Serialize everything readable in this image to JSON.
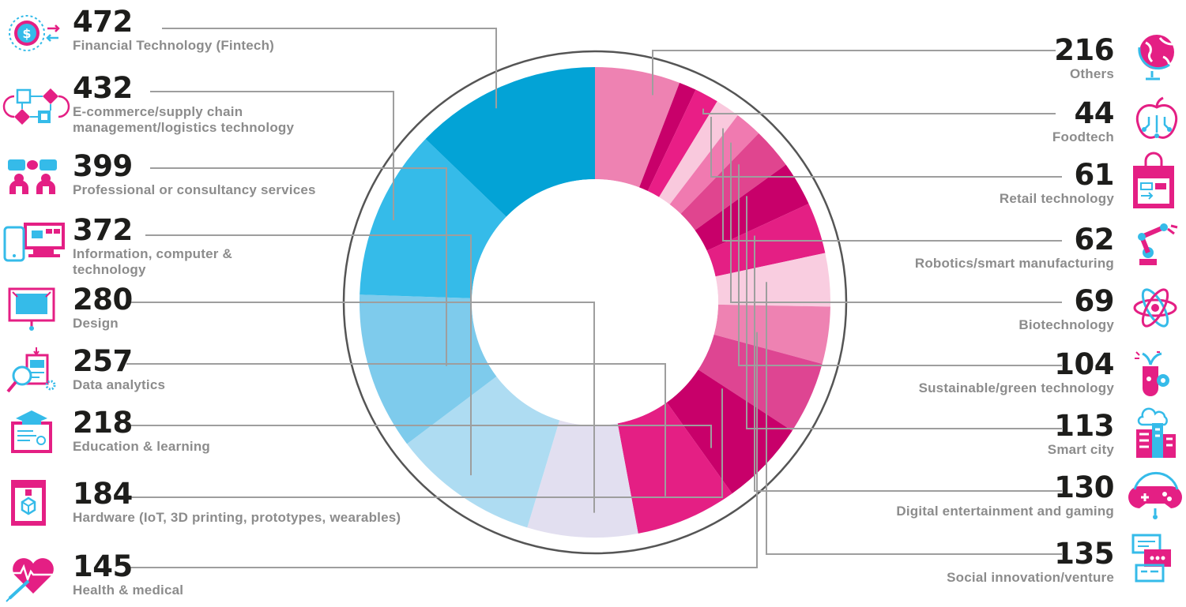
{
  "chart_data": {
    "type": "pie",
    "donut": true,
    "slices": [
      {
        "label": "Others",
        "value": 216,
        "color": "#ee82b2",
        "icon": "globe-icon"
      },
      {
        "label": "Foodtech",
        "value": 44,
        "color": "#c8006a",
        "icon": "apple-circuit-icon"
      },
      {
        "label": "Retail technology",
        "value": 61,
        "color": "#e91e86",
        "icon": "shopping-bag-icon"
      },
      {
        "label": "Robotics/smart manufacturing",
        "value": 62,
        "color": "#f9c9dd",
        "icon": "robot-arm-icon"
      },
      {
        "label": "Biotechnology",
        "value": 69,
        "color": "#f07ab0",
        "icon": "atom-icon"
      },
      {
        "label": "Sustainable/green technology",
        "value": 104,
        "color": "#e0458f",
        "icon": "plant-flask-icon"
      },
      {
        "label": "Smart city",
        "value": 113,
        "color": "#c8006a",
        "icon": "smart-building-icon"
      },
      {
        "label": "Digital entertainment and gaming",
        "value": 130,
        "color": "#e41f84",
        "icon": "game-controller-icon"
      },
      {
        "label": "Social innovation/venture",
        "value": 135,
        "color": "#f9cde0",
        "icon": "chat-bubbles-icon"
      },
      {
        "label": "Health & medical",
        "value": 145,
        "color": "#ee82b2",
        "icon": "heart-syringe-icon"
      },
      {
        "label": "Hardware (IoT, 3D printing, prototypes, wearables)",
        "value": 184,
        "color": "#de4592",
        "icon": "3d-printer-icon"
      },
      {
        "label": "Education & learning",
        "value": 218,
        "color": "#c8006a",
        "icon": "graduation-certificate-icon"
      },
      {
        "label": "Data analytics",
        "value": 257,
        "color": "#e41f84",
        "icon": "magnifier-report-icon"
      },
      {
        "label": "Design",
        "value": 280,
        "color": "#e2dff0",
        "icon": "design-board-icon"
      },
      {
        "label": "Information, computer\n& technology",
        "value": 372,
        "color": "#aedcf2",
        "icon": "devices-icon"
      },
      {
        "label": "Professional or consultancy services",
        "value": 399,
        "color": "#7ecbec",
        "icon": "consultants-icon"
      },
      {
        "label": "E-commerce/supply chain\nmanagement/logistics technology",
        "value": 432,
        "color": "#35bbe9",
        "icon": "flowchart-icon"
      },
      {
        "label": "Financial Technology (Fintech)",
        "value": 472,
        "color": "#03a3d6",
        "icon": "dollar-exchange-icon"
      }
    ]
  },
  "left_items": [
    {
      "value": "472",
      "label": "Financial Technology (Fintech)"
    },
    {
      "value": "432",
      "label": "E-commerce/supply chain management/logistics technology"
    },
    {
      "value": "399",
      "label": "Professional or consultancy services"
    },
    {
      "value": "372",
      "label": "Information, computer & technology"
    },
    {
      "value": "280",
      "label": "Design"
    },
    {
      "value": "257",
      "label": "Data analytics"
    },
    {
      "value": "218",
      "label": "Education & learning"
    },
    {
      "value": "184",
      "label": "Hardware (IoT, 3D printing, prototypes, wearables)"
    },
    {
      "value": "145",
      "label": "Health & medical"
    }
  ],
  "right_items": [
    {
      "value": "216",
      "label": "Others"
    },
    {
      "value": "44",
      "label": "Foodtech"
    },
    {
      "value": "61",
      "label": "Retail technology"
    },
    {
      "value": "62",
      "label": "Robotics/smart manufacturing"
    },
    {
      "value": "69",
      "label": "Biotechnology"
    },
    {
      "value": "104",
      "label": "Sustainable/green technology"
    },
    {
      "value": "113",
      "label": "Smart city"
    },
    {
      "value": "130",
      "label": "Digital entertainment and gaming"
    },
    {
      "value": "135",
      "label": "Social innovation/venture"
    }
  ],
  "colors": {
    "leader_line": "#9e9e9e",
    "ring": "#555555",
    "number": "#1d1d1b",
    "label": "#8c8c8c",
    "blue_icon": "#35bbe9",
    "pink_icon": "#e41f84"
  }
}
